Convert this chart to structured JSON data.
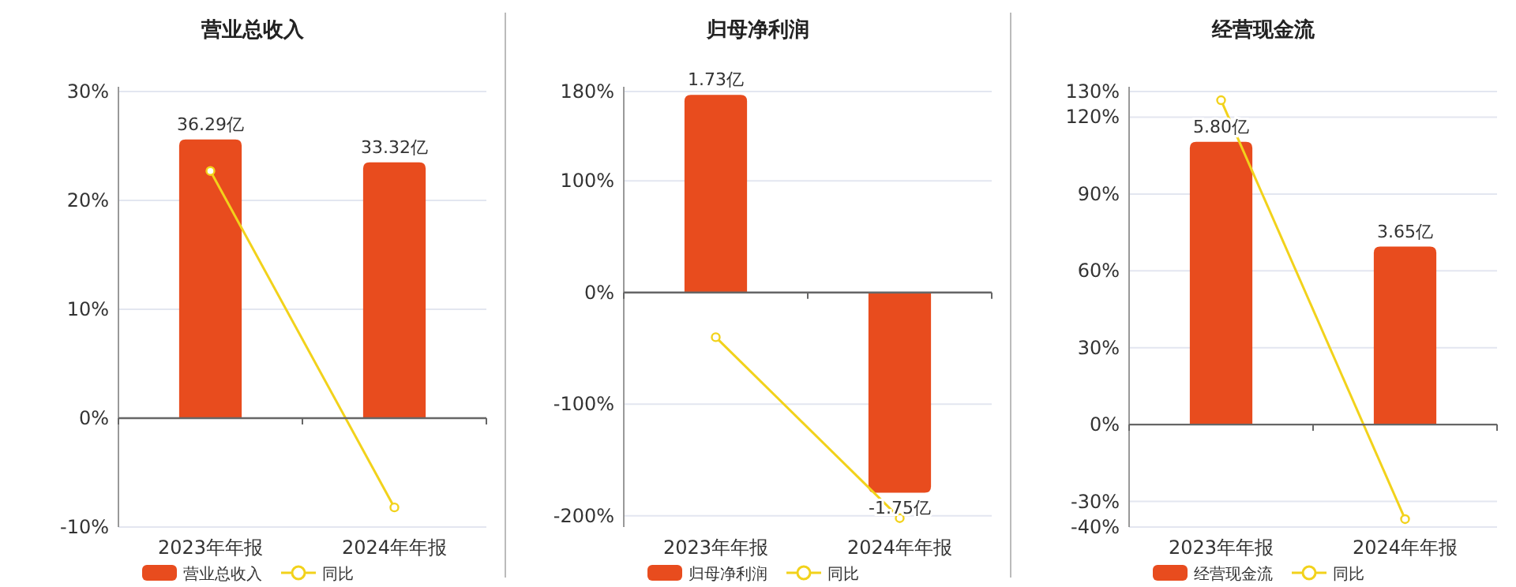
{
  "chart_data": [
    {
      "type": "bar",
      "title": "营业总收入",
      "categories": [
        "2023年年报",
        "2024年年报"
      ],
      "series": [
        {
          "name": "营业总收入",
          "axis": "y2",
          "color": "#e84c1e",
          "values": [
            36.29,
            33.32
          ],
          "value_labels": [
            "36.29亿",
            "33.32亿"
          ]
        },
        {
          "name": "同比",
          "type": "line",
          "color": "#f2d21b",
          "marker": "circle",
          "values": [
            22.7,
            -8.2
          ]
        }
      ],
      "ylim": [
        -10,
        30
      ],
      "yticks": [
        {
          "value": -10,
          "label": "-10%"
        },
        {
          "value": 0,
          "label": "0%"
        },
        {
          "value": 10,
          "label": "10%"
        },
        {
          "value": 20,
          "label": "20%"
        },
        {
          "value": 30,
          "label": "30%"
        }
      ],
      "y2lim": [
        -14.18,
        42.53
      ],
      "grid": "y",
      "legend": "bottom"
    },
    {
      "type": "bar",
      "title": "归母净利润",
      "categories": [
        "2023年年报",
        "2024年年报"
      ],
      "series": [
        {
          "name": "归母净利润",
          "axis": "y2",
          "color": "#e84c1e",
          "values": [
            1.73,
            -1.75
          ],
          "value_labels": [
            "1.73亿",
            "-1.75亿"
          ]
        },
        {
          "name": "同比",
          "type": "line",
          "color": "#f2d21b",
          "marker": "circle",
          "values": [
            -40,
            -202
          ]
        }
      ],
      "ylim": [
        -210,
        180
      ],
      "yticks": [
        {
          "value": -200,
          "label": "-200%"
        },
        {
          "value": -100,
          "label": "-100%"
        },
        {
          "value": 0,
          "label": "0%"
        },
        {
          "value": 100,
          "label": "100%"
        },
        {
          "value": 180,
          "label": "180%"
        }
      ],
      "y2lim": [
        -2.05,
        1.76
      ],
      "grid": "y",
      "legend": "bottom"
    },
    {
      "type": "bar",
      "title": "经营现金流",
      "categories": [
        "2023年年报",
        "2024年年报"
      ],
      "series": [
        {
          "name": "经营现金流",
          "axis": "y2",
          "color": "#e84c1e",
          "values": [
            5.8,
            3.65
          ],
          "value_labels": [
            "5.80亿",
            "3.65亿"
          ]
        },
        {
          "name": "同比",
          "type": "line",
          "color": "#f2d21b",
          "marker": "circle",
          "values": [
            126.6,
            -36.9
          ]
        }
      ],
      "ylim": [
        -40,
        130
      ],
      "yticks": [
        {
          "value": -40,
          "label": "-40%"
        },
        {
          "value": -30,
          "label": "-30%"
        },
        {
          "value": 0,
          "label": "0%"
        },
        {
          "value": 30,
          "label": "30%"
        },
        {
          "value": 60,
          "label": "60%"
        },
        {
          "value": 90,
          "label": "90%"
        },
        {
          "value": 120,
          "label": "120%"
        },
        {
          "value": 130,
          "label": "130%"
        }
      ],
      "y2lim": [
        -2.1,
        6.83
      ],
      "grid": "y",
      "legend": "bottom"
    }
  ]
}
